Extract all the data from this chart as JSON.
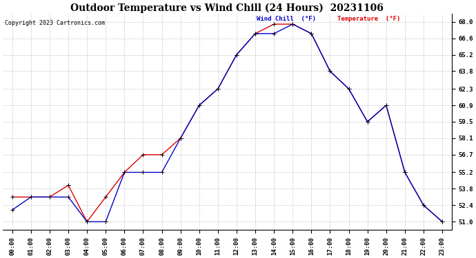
{
  "title": "Outdoor Temperature vs Wind Chill (24 Hours)  20231106",
  "copyright": "Copyright 2023 Cartronics.com",
  "legend_wind_chill": "Wind Chill  (°F)",
  "legend_temperature": "Temperature  (°F)",
  "hours": [
    0,
    1,
    2,
    3,
    4,
    5,
    6,
    7,
    8,
    9,
    10,
    11,
    12,
    13,
    14,
    15,
    16,
    17,
    18,
    19,
    20,
    21,
    22,
    23
  ],
  "temperature": [
    53.1,
    53.1,
    53.1,
    54.1,
    51.0,
    53.1,
    55.2,
    56.7,
    56.7,
    58.1,
    60.9,
    62.3,
    65.2,
    67.0,
    67.8,
    67.8,
    67.0,
    63.8,
    62.3,
    59.5,
    60.9,
    55.2,
    52.4,
    51.0
  ],
  "wind_chill": [
    52.0,
    53.1,
    53.1,
    53.1,
    51.0,
    51.0,
    55.2,
    55.2,
    55.2,
    58.1,
    60.9,
    62.3,
    65.2,
    67.0,
    67.0,
    67.8,
    67.0,
    63.8,
    62.3,
    59.5,
    60.9,
    55.2,
    52.4,
    51.0
  ],
  "ylim_min": 50.3,
  "ylim_max": 68.7,
  "yticks": [
    51.0,
    52.4,
    53.8,
    55.2,
    56.7,
    58.1,
    59.5,
    60.9,
    62.3,
    63.8,
    65.2,
    66.6,
    68.0
  ],
  "bg_color": "#ffffff",
  "grid_color": "#c8c8c8",
  "temp_color": "#dd0000",
  "wind_color": "#0000cc"
}
